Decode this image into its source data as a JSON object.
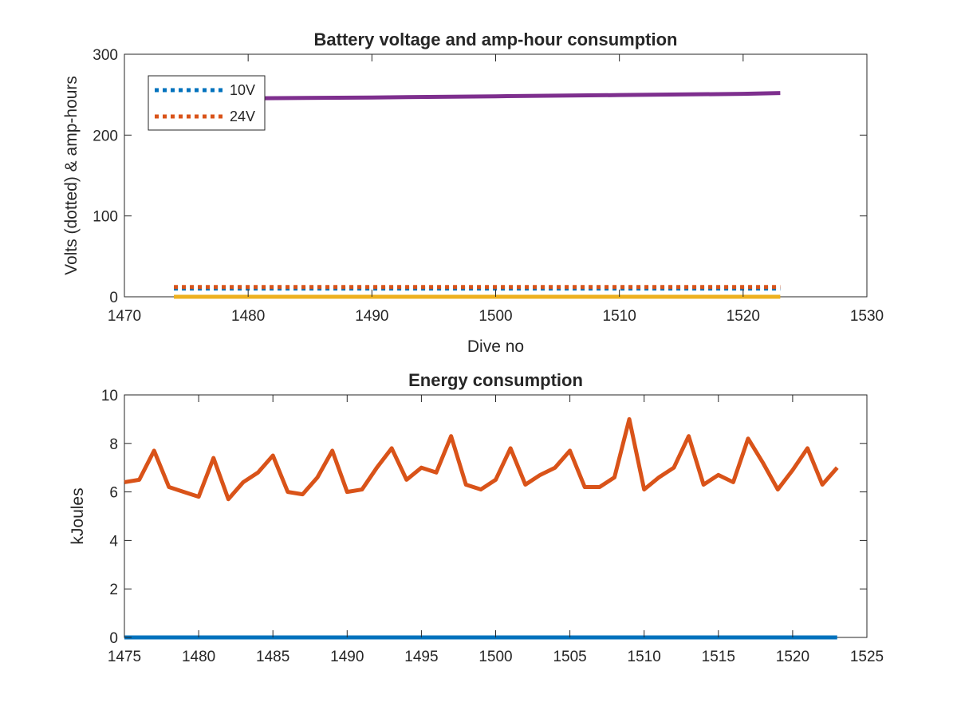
{
  "chart_data": [
    {
      "type": "line",
      "title": "Battery voltage and amp-hour consumption",
      "xlabel": "Dive no",
      "ylabel": "Volts (dotted) & amp-hours",
      "xlim": [
        1470,
        1530
      ],
      "ylim": [
        0,
        300
      ],
      "xticks": [
        "1470",
        "1480",
        "1490",
        "1500",
        "1510",
        "1520",
        "1530"
      ],
      "yticks": [
        "0",
        "100",
        "200",
        "300"
      ],
      "grid": false,
      "legend_position": "top-left",
      "series": [
        {
          "name": "10V",
          "style": "dotted",
          "color": "#0072BD",
          "x": [
            1474,
            1523
          ],
          "y": [
            10.1,
            10.1
          ]
        },
        {
          "name": "24V",
          "style": "dotted",
          "color": "#D95319",
          "x": [
            1474,
            1523
          ],
          "y": [
            12.1,
            12.1
          ]
        },
        {
          "style": "solid",
          "color": "#EDB120",
          "x": [
            1474,
            1523
          ],
          "y": [
            0,
            0
          ]
        },
        {
          "style": "solid",
          "color": "#7E2F8E",
          "x": [
            1474,
            1480,
            1490,
            1500,
            1510,
            1520,
            1523
          ],
          "y": [
            244.5,
            245.5,
            246.5,
            248,
            249.5,
            251,
            252
          ]
        }
      ]
    },
    {
      "type": "line",
      "title": "Energy consumption",
      "xlabel": "",
      "ylabel": "kJoules",
      "xlim": [
        1475,
        1525
      ],
      "ylim": [
        0,
        10
      ],
      "xticks": [
        "1475",
        "1480",
        "1485",
        "1490",
        "1495",
        "1500",
        "1505",
        "1510",
        "1515",
        "1520",
        "1525"
      ],
      "yticks": [
        "0",
        "2",
        "4",
        "6",
        "8",
        "10"
      ],
      "grid": false,
      "series": [
        {
          "style": "solid",
          "color": "#0072BD",
          "x": [
            1475,
            1523
          ],
          "y": [
            0,
            0
          ]
        },
        {
          "style": "solid",
          "color": "#D95319",
          "x": [
            1475,
            1476,
            1477,
            1478,
            1479,
            1480,
            1481,
            1482,
            1483,
            1484,
            1485,
            1486,
            1487,
            1488,
            1489,
            1490,
            1491,
            1492,
            1493,
            1494,
            1495,
            1496,
            1497,
            1498,
            1499,
            1500,
            1501,
            1502,
            1503,
            1504,
            1505,
            1506,
            1507,
            1508,
            1509,
            1510,
            1511,
            1512,
            1513,
            1514,
            1515,
            1516,
            1517,
            1518,
            1519,
            1520,
            1521,
            1522,
            1523
          ],
          "y": [
            6.4,
            6.5,
            7.7,
            6.2,
            6.0,
            5.8,
            7.4,
            5.7,
            6.4,
            6.8,
            7.5,
            6.0,
            5.9,
            6.6,
            7.7,
            6.0,
            6.1,
            7.0,
            7.8,
            6.5,
            7.0,
            6.8,
            8.3,
            6.3,
            6.1,
            6.5,
            7.8,
            6.3,
            6.7,
            7.0,
            7.7,
            6.2,
            6.2,
            6.6,
            9.0,
            6.1,
            6.6,
            7.0,
            8.3,
            6.3,
            6.7,
            6.4,
            8.2,
            7.2,
            6.1,
            6.9,
            7.8,
            6.3,
            7.0
          ]
        }
      ]
    }
  ]
}
